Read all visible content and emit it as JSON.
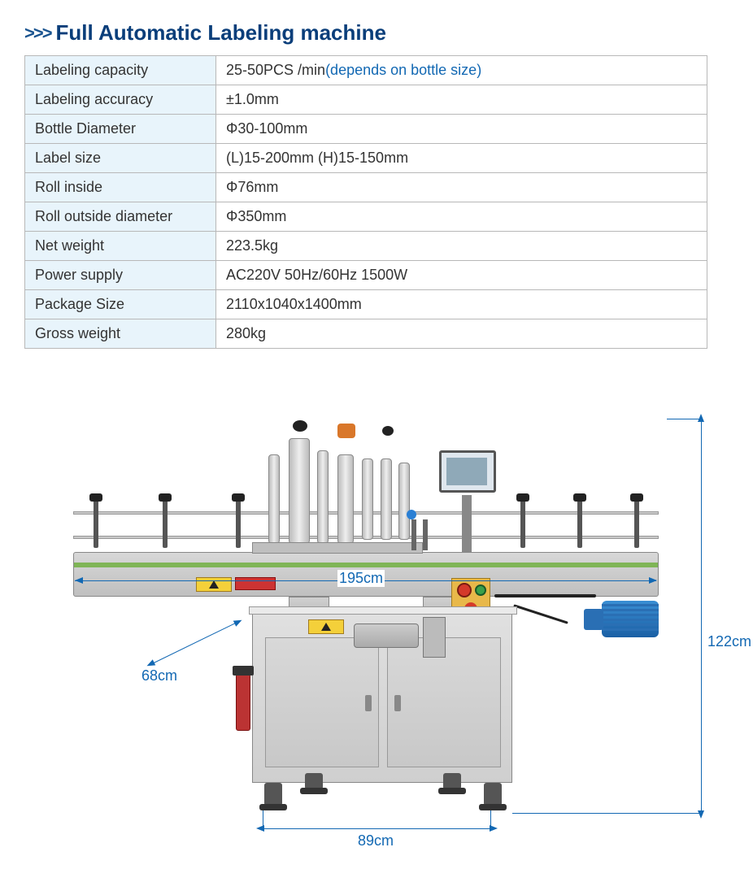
{
  "header": {
    "chevrons": ">>>",
    "title": "Full Automatic Labeling machine"
  },
  "specs": {
    "columns_width": [
      235,
      null
    ],
    "label_bg": "#e8f4fb",
    "value_bg": "#ffffff",
    "border_color": "#b8b8b8",
    "font_size": 18,
    "rows": [
      {
        "label": "Labeling capacity",
        "value": "25-50PCS /min",
        "note": "(depends on bottle size)"
      },
      {
        "label": "Labeling accuracy",
        "value": "±1.0mm"
      },
      {
        "label": "Bottle Diameter",
        "value": "Φ30-100mm"
      },
      {
        "label": "Label size",
        "value": "(L)15-200mm   (H)15-150mm"
      },
      {
        "label": "Roll inside",
        "value": "Φ76mm"
      },
      {
        "label": "Roll outside diameter",
        "value": "Φ350mm"
      },
      {
        "label": "Net weight",
        "value": "223.5kg"
      },
      {
        "label": "Power supply",
        "value": "AC220V 50Hz/60Hz  1500W"
      },
      {
        "label": "Package  Size",
        "value": "2110x1040x1400mm"
      },
      {
        "label": "Gross weight",
        "value": "280kg"
      }
    ]
  },
  "diagram": {
    "dimension_color": "#1268b3",
    "labels": {
      "length": "195cm",
      "depth": "68cm",
      "width": "89cm",
      "height": "122cm"
    },
    "machine_colors": {
      "steel": "#cfcfcf",
      "steel_dark": "#b8b8b8",
      "belt_green": "#7fb556",
      "motor_blue": "#1a5fa4",
      "button_yellow": "#e8b84a",
      "button_red": "#d43a2a",
      "button_green": "#3aa04a",
      "knob_orange": "#d9772a",
      "knob_black": "#222222",
      "warning_yellow": "#f4d03a",
      "pneumatic_red": "#b33333"
    }
  }
}
